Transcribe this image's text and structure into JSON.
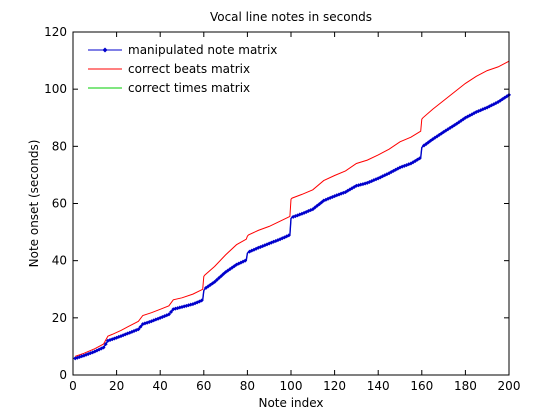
{
  "chart_data": {
    "type": "line",
    "title": "Vocal line notes in seconds",
    "xlabel": "Note index",
    "ylabel": "Note onset (seconds)",
    "xlim": [
      0,
      200
    ],
    "ylim": [
      0,
      120
    ],
    "xticks": [
      0,
      20,
      40,
      60,
      80,
      100,
      120,
      140,
      160,
      180,
      200
    ],
    "yticks": [
      0,
      20,
      40,
      60,
      80,
      100,
      120
    ],
    "grid": false,
    "legend_position": "top-left",
    "series": [
      {
        "name": "correct times matrix",
        "color": "#00cc00",
        "marker": "none",
        "x": [
          1,
          5,
          10,
          14,
          16,
          18,
          22,
          26,
          30,
          32,
          36,
          40,
          44,
          46,
          50,
          55,
          59.5,
          60,
          60.5,
          65,
          70,
          75,
          79.5,
          80,
          80.5,
          85,
          90,
          95,
          99.5,
          100,
          100.5,
          105,
          110,
          115,
          120,
          125,
          130,
          135,
          140,
          145,
          150,
          155,
          159.5,
          160,
          160.5,
          165,
          170,
          175,
          180,
          185,
          190,
          195,
          200
        ],
        "y": [
          5.8,
          6.8,
          8.2,
          9.6,
          12.0,
          12.5,
          13.6,
          14.8,
          16.0,
          17.8,
          18.8,
          20.0,
          21.2,
          23.0,
          23.8,
          24.8,
          26.2,
          29.5,
          30.2,
          32.6,
          36.0,
          38.6,
          40.2,
          42.6,
          43.0,
          44.5,
          46.0,
          47.5,
          49.0,
          54.8,
          55.2,
          56.4,
          58.0,
          61.0,
          62.6,
          64.0,
          66.2,
          67.2,
          68.8,
          70.6,
          72.6,
          74.0,
          76.0,
          79.6,
          80.0,
          82.5,
          85.0,
          87.4,
          90.0,
          92.0,
          93.6,
          95.5,
          98.0
        ]
      },
      {
        "name": "correct beats matrix",
        "color": "#ff0000",
        "marker": "none",
        "x": [
          1,
          5,
          10,
          14,
          16,
          18,
          22,
          26,
          30,
          32,
          36,
          40,
          44,
          46,
          50,
          55,
          59.5,
          60,
          60.5,
          65,
          70,
          75,
          79.5,
          80,
          80.5,
          85,
          90,
          95,
          99.5,
          100,
          100.5,
          105,
          110,
          115,
          120,
          125,
          130,
          135,
          140,
          145,
          150,
          155,
          159.5,
          160,
          160.5,
          165,
          170,
          175,
          180,
          185,
          190,
          195,
          200
        ],
        "y": [
          6.5,
          7.6,
          9.2,
          10.8,
          13.6,
          14.2,
          15.6,
          17.2,
          18.8,
          20.8,
          21.8,
          23.0,
          24.2,
          26.3,
          27.0,
          28.3,
          30.0,
          34.5,
          35.0,
          38.0,
          42.0,
          45.6,
          47.5,
          48.6,
          49.0,
          50.6,
          52.0,
          53.8,
          55.5,
          61.5,
          61.9,
          63.2,
          64.8,
          68.0,
          69.8,
          71.4,
          74.0,
          75.2,
          77.0,
          79.0,
          81.6,
          83.2,
          85.3,
          89.5,
          90.0,
          93.0,
          96.0,
          99.0,
          102.0,
          104.5,
          106.5,
          107.8,
          109.8
        ]
      },
      {
        "name": "manipulated note matrix",
        "color": "#0000cc",
        "marker": "diamond",
        "x": [
          1,
          5,
          10,
          14,
          16,
          18,
          22,
          26,
          30,
          32,
          36,
          40,
          44,
          46,
          50,
          55,
          59.5,
          60,
          60.5,
          65,
          70,
          75,
          79.5,
          80,
          80.5,
          85,
          90,
          95,
          99.5,
          100,
          100.5,
          105,
          110,
          115,
          120,
          125,
          130,
          135,
          140,
          145,
          150,
          155,
          159.5,
          160,
          160.5,
          165,
          170,
          175,
          180,
          185,
          190,
          195,
          200
        ],
        "y": [
          5.8,
          6.8,
          8.2,
          9.6,
          12.0,
          12.5,
          13.6,
          14.8,
          16.0,
          17.8,
          18.8,
          20.0,
          21.2,
          23.0,
          23.8,
          24.8,
          26.2,
          29.5,
          30.2,
          32.6,
          36.0,
          38.6,
          40.2,
          42.6,
          43.0,
          44.5,
          46.0,
          47.5,
          49.0,
          54.8,
          55.2,
          56.4,
          58.0,
          61.0,
          62.6,
          64.0,
          66.2,
          67.2,
          68.8,
          70.6,
          72.6,
          74.0,
          76.0,
          79.6,
          80.0,
          82.5,
          85.0,
          87.4,
          90.0,
          92.0,
          93.6,
          95.5,
          98.0
        ]
      }
    ],
    "legend_order": [
      "manipulated note matrix",
      "correct beats matrix",
      "correct times matrix"
    ]
  }
}
